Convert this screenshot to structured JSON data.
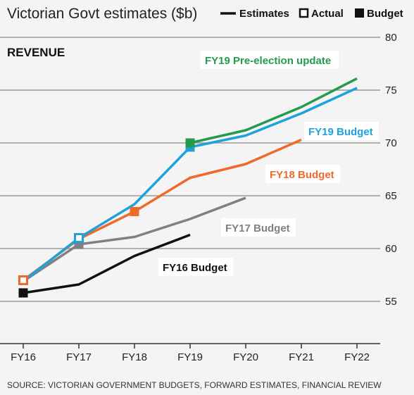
{
  "title": "Victorian Govt estimates ($b)",
  "legend": [
    {
      "label": "Estimates",
      "symbol": "line"
    },
    {
      "label": "Actual",
      "symbol": "open-square"
    },
    {
      "label": "Budget",
      "symbol": "filled-square"
    }
  ],
  "section_label": "REVENUE",
  "source": "SOURCE: VICTORIAN GOVERNMENT BUDGETS, FORWARD ESTIMATES, FINANCIAL REVIEW",
  "chart_data": {
    "type": "line",
    "title": "Victorian Govt estimates ($b)",
    "subtitle": "REVENUE",
    "categories": [
      "FY16",
      "FY17",
      "FY18",
      "FY19",
      "FY20",
      "FY21",
      "FY22"
    ],
    "ylim": [
      51,
      80
    ],
    "yticks": [
      55,
      60,
      65,
      70,
      75,
      80
    ],
    "grid": true,
    "legend_placement": "top-right",
    "series": [
      {
        "name": "FY16 Budget",
        "color": "#111111",
        "points": [
          [
            0,
            55.8
          ],
          [
            1,
            56.6
          ],
          [
            2,
            59.3
          ],
          [
            3,
            61.3
          ]
        ],
        "marker": {
          "index": 0,
          "type": "filled-square"
        }
      },
      {
        "name": "FY17 Budget",
        "color": "#808080",
        "points": [
          [
            0,
            56.9
          ],
          [
            1,
            60.4
          ],
          [
            2,
            61.1
          ],
          [
            3,
            62.8
          ],
          [
            4,
            64.8
          ]
        ],
        "marker": {
          "index": 1,
          "type": "filled-square"
        }
      },
      {
        "name": "FY18 Budget",
        "color": "#ee6a2a",
        "points": [
          [
            0,
            57.0
          ],
          [
            1,
            60.9
          ],
          [
            2,
            63.5
          ],
          [
            3,
            66.7
          ],
          [
            4,
            68.0
          ],
          [
            5,
            70.3
          ]
        ],
        "marker": {
          "index": 2,
          "type": "filled-square"
        }
      },
      {
        "name": "FY19 Budget",
        "color": "#1ea2dd",
        "points": [
          [
            0,
            56.9
          ],
          [
            1,
            61.0
          ],
          [
            2,
            64.2
          ],
          [
            3,
            69.6
          ],
          [
            4,
            70.7
          ],
          [
            5,
            72.8
          ],
          [
            6,
            75.2
          ]
        ],
        "marker": {
          "index": 3,
          "type": "filled-square"
        }
      },
      {
        "name": "FY19 Pre-election update",
        "color": "#259a4f",
        "points": [
          [
            3,
            70.0
          ],
          [
            4,
            71.2
          ],
          [
            5,
            73.4
          ],
          [
            6,
            76.1
          ]
        ],
        "marker": {
          "index": 0,
          "type": "filled-square"
        }
      }
    ],
    "actuals": [
      {
        "x": 0,
        "y": 57.0,
        "color": "#ee6a2a",
        "type": "open-square"
      },
      {
        "x": 1,
        "y": 61.0,
        "color": "#1ea2dd",
        "type": "open-square"
      }
    ]
  },
  "series_labels": [
    {
      "text": "FY19 Pre-election update",
      "color": "#259a4f"
    },
    {
      "text": "FY19 Budget",
      "color": "#1ea2dd"
    },
    {
      "text": "FY18 Budget",
      "color": "#ee6a2a"
    },
    {
      "text": "FY17 Budget",
      "color": "#808080"
    },
    {
      "text": "FY16 Budget",
      "color": "#111111"
    }
  ]
}
